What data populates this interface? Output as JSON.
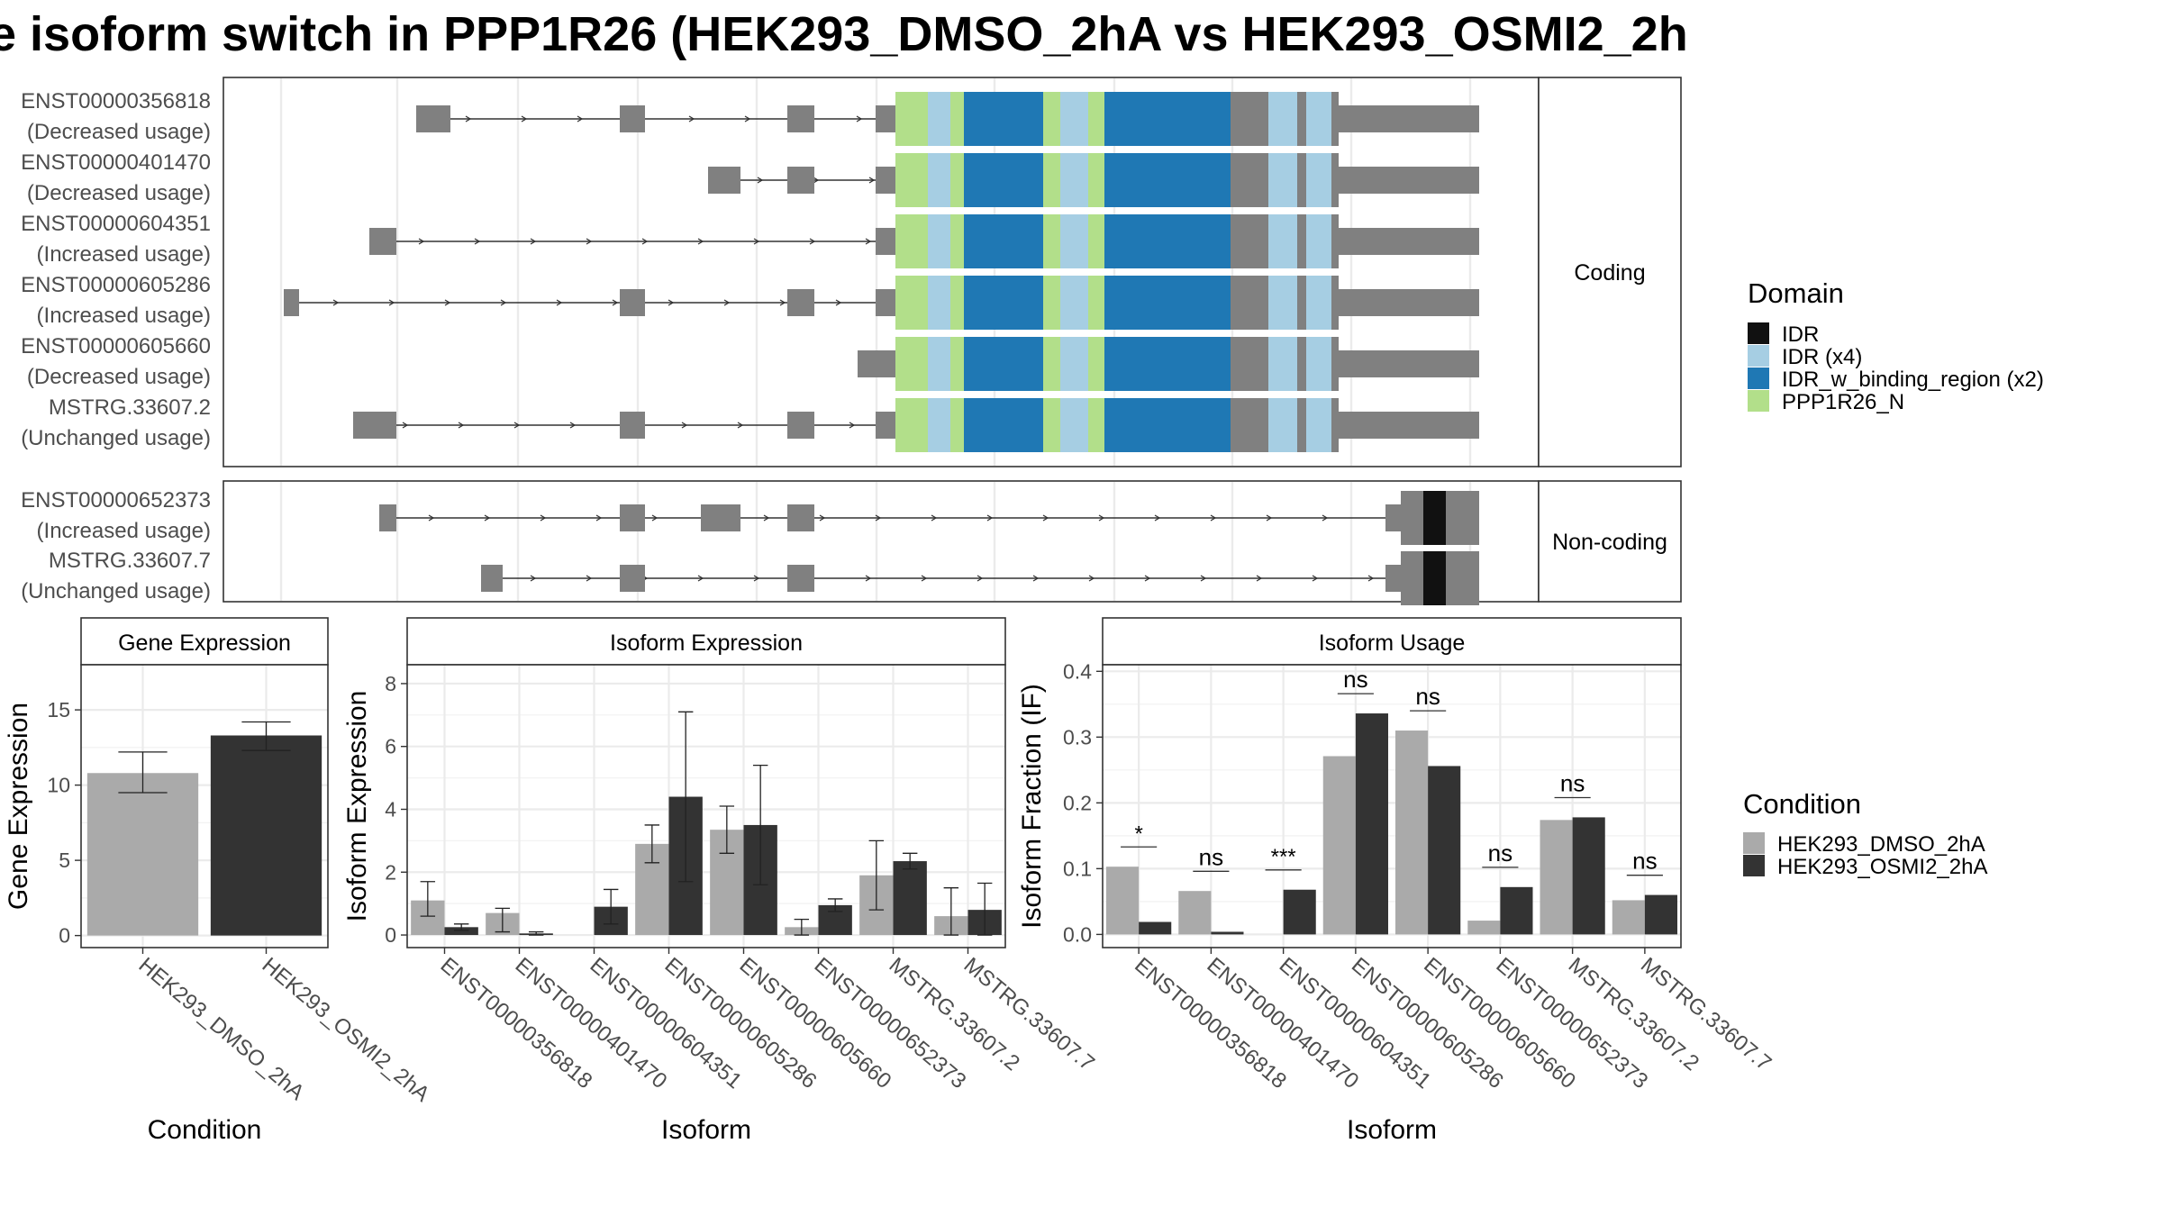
{
  "title": "e isoform switch in PPP1R26 (HEK293_DMSO_2hA vs HEK293_OSMI2_2h",
  "colors": {
    "ctrl": "#aaaaaa",
    "treat": "#333333",
    "exon": "#808080",
    "IDR": "#111111",
    "IDR_x4": "#a6cee3",
    "IDR_w_binding_region_x2": "#1f78b4",
    "PPP1R26_N": "#b2df8a",
    "strip": "#ffffff",
    "grid": "#ebebeb"
  },
  "structure": {
    "coding_label": "Coding",
    "noncoding_label": "Non-coding",
    "coding": [
      {
        "id": "ENST00000356818",
        "usage": "(Decreased usage)"
      },
      {
        "id": "ENST00000401470",
        "usage": "(Decreased usage)"
      },
      {
        "id": "ENST00000604351",
        "usage": "(Increased usage)"
      },
      {
        "id": "ENST00000605286",
        "usage": "(Increased usage)"
      },
      {
        "id": "ENST00000605660",
        "usage": "(Decreased usage)"
      },
      {
        "id": "MSTRG.33607.2",
        "usage": "(Unchanged usage)"
      }
    ],
    "noncoding": [
      {
        "id": "ENST00000652373",
        "usage": "(Increased usage)"
      },
      {
        "id": "MSTRG.33607.7",
        "usage": "(Unchanged usage)"
      }
    ]
  },
  "domain_legend": {
    "title": "Domain",
    "items": [
      {
        "label": "IDR",
        "color": "#111111"
      },
      {
        "label": "IDR (x4)",
        "color": "#a6cee3"
      },
      {
        "label": "IDR_w_binding_region (x2)",
        "color": "#1f78b4"
      },
      {
        "label": "PPP1R26_N",
        "color": "#b2df8a"
      }
    ]
  },
  "condition_legend": {
    "title": "Condition",
    "items": [
      {
        "label": "HEK293_DMSO_2hA",
        "color": "#aaaaaa"
      },
      {
        "label": "HEK293_OSMI2_2hA",
        "color": "#333333"
      }
    ]
  },
  "chart_data": [
    {
      "type": "bar",
      "title": "Gene Expression",
      "xlabel": "Condition",
      "ylabel": "Gene Expression",
      "categories": [
        "HEK293_DMSO_2hA",
        "HEK293_OSMI2_2hA"
      ],
      "values": [
        10.8,
        13.3
      ],
      "errors": [
        [
          9.5,
          12.2
        ],
        [
          12.3,
          14.2
        ]
      ],
      "ylim": [
        -0.8,
        18.0
      ],
      "yticks": [
        0,
        5,
        10,
        15
      ]
    },
    {
      "type": "bar",
      "title": "Isoform Expression",
      "xlabel": "Isoform",
      "ylabel": "Isoform Expression",
      "categories": [
        "ENST00000356818",
        "ENST00000401470",
        "ENST00000604351",
        "ENST00000605286",
        "ENST00000605660",
        "ENST00000652373",
        "MSTRG.33607.2",
        "MSTRG.33607.7"
      ],
      "series": [
        {
          "name": "HEK293_DMSO_2hA",
          "values": [
            1.1,
            0.7,
            0.0,
            2.9,
            3.35,
            0.25,
            1.9,
            0.6
          ]
        },
        {
          "name": "HEK293_OSMI2_2hA",
          "values": [
            0.25,
            0.05,
            0.9,
            4.4,
            3.5,
            0.95,
            2.35,
            0.8
          ]
        }
      ],
      "errors": [
        [
          [
            0.6,
            1.7
          ],
          [
            0.1,
            0.85
          ],
          [
            0,
            0
          ],
          [
            2.3,
            3.5
          ],
          [
            2.6,
            4.1
          ],
          [
            0.0,
            0.5
          ],
          [
            0.8,
            3.0
          ],
          [
            0.0,
            1.5
          ]
        ],
        [
          [
            0.15,
            0.35
          ],
          [
            0.0,
            0.1
          ],
          [
            0.35,
            1.45
          ],
          [
            1.7,
            7.1
          ],
          [
            1.6,
            5.4
          ],
          [
            0.75,
            1.15
          ],
          [
            2.1,
            2.6
          ],
          [
            0.0,
            1.65
          ]
        ]
      ],
      "ylim": [
        -0.4,
        8.6
      ],
      "yticks": [
        0,
        2,
        4,
        6,
        8
      ]
    },
    {
      "type": "bar",
      "title": "Isoform Usage",
      "xlabel": "Isoform",
      "ylabel": "Isoform Fraction (IF)",
      "categories": [
        "ENST00000356818",
        "ENST00000401470",
        "ENST00000604351",
        "ENST00000605286",
        "ENST00000605660",
        "ENST00000652373",
        "MSTRG.33607.2",
        "MSTRG.33607.7"
      ],
      "series": [
        {
          "name": "HEK293_DMSO_2hA",
          "values": [
            0.103,
            0.066,
            0.0,
            0.271,
            0.31,
            0.021,
            0.174,
            0.052
          ]
        },
        {
          "name": "HEK293_OSMI2_2hA",
          "values": [
            0.019,
            0.004,
            0.068,
            0.336,
            0.256,
            0.072,
            0.178,
            0.06
          ]
        }
      ],
      "significance": [
        "*",
        "ns",
        "***",
        "ns",
        "ns",
        "ns",
        "ns",
        "ns"
      ],
      "ylim": [
        -0.02,
        0.41
      ],
      "yticks": [
        0.0,
        0.1,
        0.2,
        0.3,
        0.4
      ]
    }
  ]
}
